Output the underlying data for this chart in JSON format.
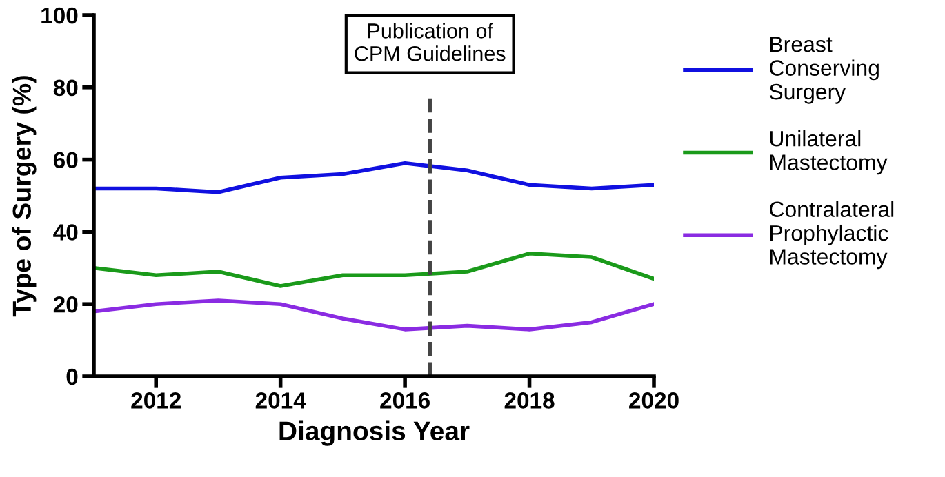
{
  "chart_data": {
    "type": "line",
    "xlabel": "Diagnosis Year",
    "ylabel": "Type of Surgery (%)",
    "x": [
      2011,
      2012,
      2013,
      2014,
      2015,
      2016,
      2017,
      2018,
      2019,
      2020
    ],
    "series": [
      {
        "name": "Breast\nConserving\nSurgery",
        "color": "#1010e0",
        "values": [
          52,
          52,
          51,
          55,
          56,
          59,
          57,
          53,
          52,
          53
        ]
      },
      {
        "name": "Unilateral\nMastectomy",
        "color": "#1a9a1a",
        "values": [
          30,
          28,
          29,
          25,
          28,
          28,
          29,
          34,
          33,
          27
        ]
      },
      {
        "name": "Contralateral\nProphylactic\nMastectomy",
        "color": "#8a2be2",
        "values": [
          18,
          20,
          21,
          20,
          16,
          13,
          14,
          13,
          15,
          20
        ]
      }
    ],
    "xlim": [
      2011,
      2020
    ],
    "xticks": [
      2012,
      2014,
      2016,
      2018,
      2020
    ],
    "ylim": [
      0,
      100
    ],
    "yticks": [
      0,
      20,
      40,
      60,
      80,
      100
    ],
    "ref_lines": [
      {
        "axis": "x",
        "value": 2016.4,
        "label": "Publication of\nCPM Guidelines",
        "color": "#444444",
        "line_style": "dashed"
      }
    ],
    "grid": false,
    "legend": "right",
    "marker": "none",
    "line_style": "solid"
  }
}
